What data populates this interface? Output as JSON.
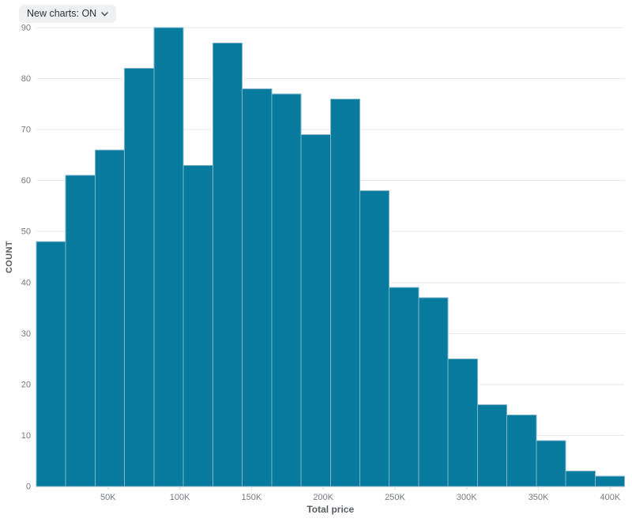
{
  "toolbar": {
    "new_charts_label": "New charts: ON",
    "chevron_icon": "chevron-down"
  },
  "chart_data": {
    "type": "bar",
    "subtype": "histogram",
    "title": "",
    "xlabel": "Total price",
    "ylabel": "COUNT",
    "x_range": [
      0,
      410000
    ],
    "ylim": [
      0,
      90
    ],
    "n_bins": 20,
    "bin_width": 20500,
    "values": [
      48,
      61,
      66,
      82,
      90,
      63,
      87,
      78,
      77,
      69,
      76,
      58,
      39,
      37,
      25,
      16,
      14,
      9,
      3,
      2
    ],
    "y_ticks": [
      0,
      10,
      20,
      30,
      40,
      50,
      60,
      70,
      80,
      90
    ],
    "x_ticks": [
      {
        "value": 50000,
        "label": "50K"
      },
      {
        "value": 100000,
        "label": "100K"
      },
      {
        "value": 150000,
        "label": "150K"
      },
      {
        "value": 200000,
        "label": "200K"
      },
      {
        "value": 250000,
        "label": "250K"
      },
      {
        "value": 300000,
        "label": "300K"
      },
      {
        "value": 350000,
        "label": "350K"
      },
      {
        "value": 400000,
        "label": "400K"
      }
    ],
    "grid": true,
    "legend": "none",
    "colors": {
      "bar_fill": "#077b9d",
      "bar_stroke": "#7fb5ca",
      "grid_line": "#e9e9e9",
      "axis_line": "#d8dadc",
      "tick_mark": "#d8dadc",
      "tick_label": "#75797f",
      "axis_title": "#585c63",
      "toggle_bg": "#eef0f1",
      "toggle_text": "#2f3235"
    }
  }
}
